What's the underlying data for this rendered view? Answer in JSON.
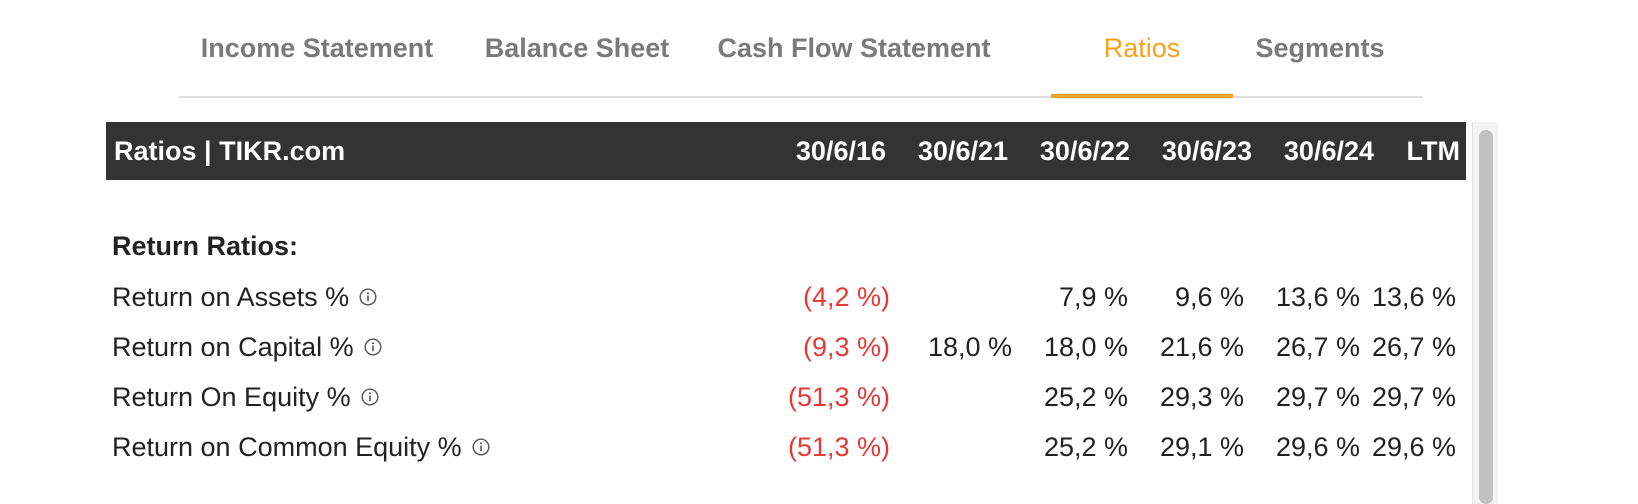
{
  "tabs": [
    {
      "label": "Income Statement",
      "active": false
    },
    {
      "label": "Balance Sheet",
      "active": false
    },
    {
      "label": "Cash Flow Statement",
      "active": false
    },
    {
      "label": "Ratios",
      "active": true
    },
    {
      "label": "Segments",
      "active": false
    }
  ],
  "table": {
    "title": "Ratios | TIKR.com",
    "columns": [
      "30/6/16",
      "30/6/21",
      "30/6/22",
      "30/6/23",
      "30/6/24",
      "LTM"
    ],
    "section_title": "Return Ratios:",
    "rows": [
      {
        "label": "Return on Assets %",
        "values": [
          "(4,2 %)",
          "",
          "7,9 %",
          "9,6 %",
          "13,6 %",
          "13,6 %"
        ]
      },
      {
        "label": "Return on Capital %",
        "values": [
          "(9,3 %)",
          "18,0 %",
          "18,0 %",
          "21,6 %",
          "26,7 %",
          "26,7 %"
        ]
      },
      {
        "label": "Return On Equity %",
        "values": [
          "(51,3 %)",
          "",
          "25,2 %",
          "29,3 %",
          "29,7 %",
          "29,7 %"
        ]
      },
      {
        "label": "Return on Common Equity %",
        "values": [
          "(51,3 %)",
          "",
          "25,2 %",
          "29,1 %",
          "29,6 %",
          "29,6 %"
        ]
      }
    ]
  },
  "colors": {
    "accent": "#f7a11a",
    "header_bg": "#333333",
    "negative": "#e53935"
  },
  "icons": {
    "row_info": "info-icon"
  }
}
